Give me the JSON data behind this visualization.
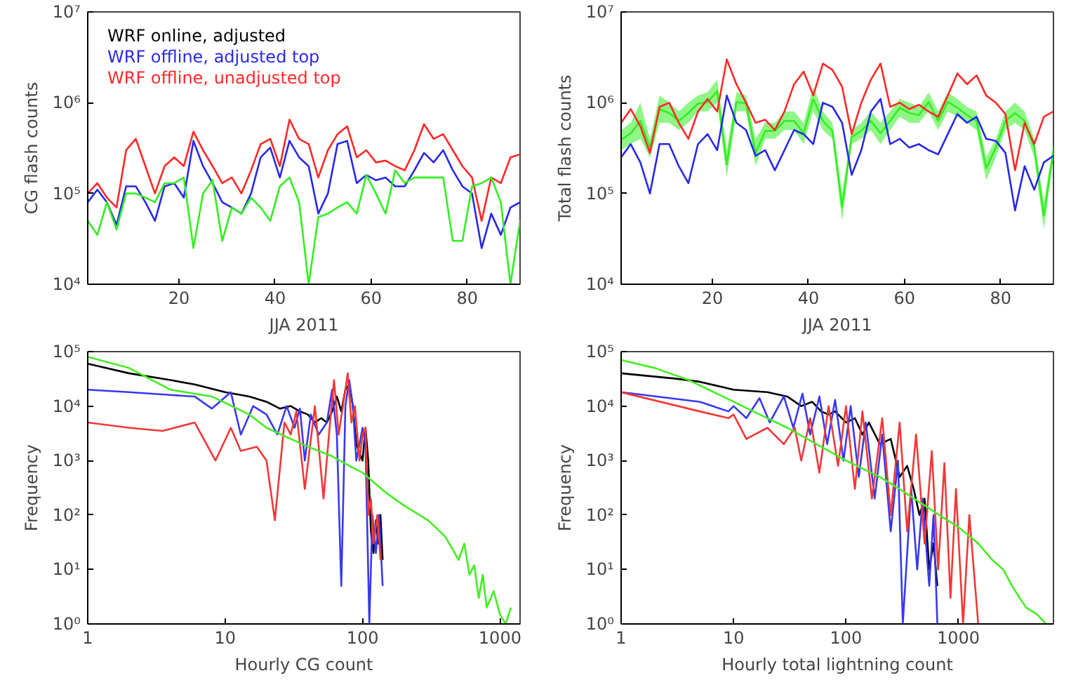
{
  "chart_data": [
    {
      "type": "line",
      "xlabel": "JJA 2011",
      "ylabel": "CG flash counts",
      "log": "y",
      "grid": false,
      "legend": "top left",
      "xlim": [
        1,
        91
      ],
      "xticks": [
        20,
        40,
        60,
        80
      ],
      "ylim": [
        10000,
        10000000
      ],
      "yticks": [
        {
          "value": 10000,
          "label": "10⁴"
        },
        {
          "value": 100000,
          "label": "10⁵"
        },
        {
          "value": 1000000,
          "label": "10⁶"
        },
        {
          "value": 10000000,
          "label": "10⁷"
        }
      ],
      "x": [
        1,
        3,
        5,
        7,
        9,
        11,
        13,
        15,
        17,
        19,
        21,
        23,
        25,
        27,
        29,
        31,
        33,
        35,
        37,
        39,
        41,
        43,
        45,
        47,
        49,
        51,
        53,
        55,
        57,
        59,
        61,
        63,
        65,
        67,
        69,
        71,
        73,
        75,
        77,
        79,
        81,
        83,
        85,
        87,
        89,
        91
      ],
      "series": [
        {
          "name": "WRF online, adjusted",
          "color": "#000000",
          "values": [
            null,
            null,
            null,
            null,
            null,
            null,
            null,
            null,
            null,
            null,
            null,
            null,
            null,
            null,
            null,
            null,
            null,
            null,
            null,
            null,
            null,
            null,
            null,
            null,
            null,
            null,
            null,
            null,
            null,
            null,
            null,
            null,
            null,
            null,
            null,
            null,
            null,
            null,
            null,
            null,
            null,
            null,
            null,
            null,
            null,
            null
          ]
        },
        {
          "name": "WRF offline, adjusted top",
          "color": "#2828e8",
          "values": [
            80000,
            110000,
            80000,
            45000,
            120000,
            120000,
            80000,
            50000,
            120000,
            130000,
            90000,
            380000,
            200000,
            130000,
            80000,
            70000,
            60000,
            100000,
            250000,
            320000,
            150000,
            380000,
            250000,
            200000,
            60000,
            100000,
            350000,
            380000,
            130000,
            160000,
            140000,
            150000,
            120000,
            120000,
            180000,
            280000,
            220000,
            300000,
            180000,
            120000,
            100000,
            25000,
            60000,
            35000,
            70000,
            80000
          ]
        },
        {
          "name": "WRF offline, unadjusted top",
          "color": "#ff2828",
          "values": [
            100000,
            130000,
            90000,
            70000,
            300000,
            400000,
            200000,
            100000,
            200000,
            250000,
            200000,
            480000,
            300000,
            200000,
            130000,
            150000,
            100000,
            180000,
            350000,
            400000,
            200000,
            650000,
            400000,
            350000,
            150000,
            300000,
            450000,
            550000,
            250000,
            300000,
            220000,
            230000,
            200000,
            180000,
            300000,
            580000,
            400000,
            450000,
            300000,
            200000,
            150000,
            50000,
            150000,
            130000,
            250000,
            270000
          ]
        },
        {
          "color": "#33ee22",
          "values": [
            50000,
            35000,
            80000,
            40000,
            100000,
            100000,
            90000,
            80000,
            130000,
            130000,
            150000,
            25000,
            100000,
            140000,
            30000,
            70000,
            60000,
            90000,
            70000,
            50000,
            120000,
            150000,
            80000,
            10000,
            55000,
            60000,
            70000,
            80000,
            60000,
            160000,
            100000,
            60000,
            180000,
            130000,
            150000,
            150000,
            150000,
            150000,
            30000,
            30000,
            120000,
            130000,
            150000,
            80000,
            10000,
            50000
          ]
        }
      ]
    },
    {
      "type": "line",
      "xlabel": "JJA 2011",
      "ylabel": "Total flash counts",
      "log": "y",
      "grid": false,
      "xlim": [
        1,
        91
      ],
      "xticks": [
        20,
        40,
        60,
        80
      ],
      "ylim": [
        10000,
        10000000
      ],
      "yticks": [
        {
          "value": 10000,
          "label": "10⁴"
        },
        {
          "value": 100000,
          "label": "10⁵"
        },
        {
          "value": 1000000,
          "label": "10⁶"
        },
        {
          "value": 10000000,
          "label": "10⁷"
        }
      ],
      "x": [
        1,
        3,
        5,
        7,
        9,
        11,
        13,
        15,
        17,
        19,
        21,
        23,
        25,
        27,
        29,
        31,
        33,
        35,
        37,
        39,
        41,
        43,
        45,
        47,
        49,
        51,
        53,
        55,
        57,
        59,
        61,
        63,
        65,
        67,
        69,
        71,
        73,
        75,
        77,
        79,
        81,
        83,
        85,
        87,
        89,
        91
      ],
      "series": [
        {
          "color": "#33ee22",
          "values": [
            390000,
            460000,
            630000,
            320000,
            850000,
            770000,
            630000,
            770000,
            980000,
            1020000,
            1340000,
            210000,
            1020000,
            980000,
            280000,
            490000,
            490000,
            630000,
            630000,
            460000,
            1100000,
            630000,
            490000,
            71000,
            420000,
            490000,
            630000,
            460000,
            630000,
            880000,
            770000,
            730000,
            1020000,
            630000,
            1020000,
            880000,
            730000,
            630000,
            190000,
            320000,
            630000,
            770000,
            630000,
            320000,
            57000,
            300000
          ],
          "lower": [
            300000,
            350000,
            400000,
            250000,
            600000,
            600000,
            500000,
            600000,
            800000,
            800000,
            1000000,
            150000,
            800000,
            800000,
            200000,
            400000,
            400000,
            500000,
            500000,
            350000,
            800000,
            500000,
            400000,
            50000,
            350000,
            400000,
            500000,
            350000,
            500000,
            700000,
            600000,
            600000,
            800000,
            500000,
            800000,
            700000,
            600000,
            500000,
            140000,
            250000,
            500000,
            600000,
            500000,
            250000,
            40000,
            250000
          ],
          "upper": [
            500000,
            600000,
            1000000,
            400000,
            1200000,
            1000000,
            800000,
            1000000,
            1200000,
            1300000,
            1800000,
            300000,
            1300000,
            1200000,
            400000,
            600000,
            600000,
            800000,
            800000,
            600000,
            1500000,
            800000,
            600000,
            100000,
            500000,
            600000,
            800000,
            600000,
            800000,
            1100000,
            1000000,
            900000,
            1300000,
            800000,
            1300000,
            1100000,
            900000,
            800000,
            250000,
            400000,
            800000,
            1000000,
            800000,
            400000,
            80000,
            350000
          ]
        },
        {
          "color": "#ff2828",
          "values": [
            600000,
            850000,
            550000,
            280000,
            900000,
            1000000,
            600000,
            400000,
            800000,
            1100000,
            800000,
            3000000,
            1600000,
            1000000,
            600000,
            650000,
            500000,
            800000,
            1600000,
            2200000,
            1200000,
            2700000,
            2300000,
            1500000,
            450000,
            1000000,
            1800000,
            2700000,
            900000,
            1000000,
            850000,
            950000,
            800000,
            700000,
            1200000,
            2100000,
            1600000,
            2000000,
            1200000,
            1000000,
            750000,
            180000,
            600000,
            350000,
            700000,
            800000
          ]
        },
        {
          "color": "#2828e8",
          "values": [
            250000,
            350000,
            220000,
            100000,
            350000,
            350000,
            200000,
            130000,
            350000,
            450000,
            300000,
            1200000,
            600000,
            500000,
            260000,
            300000,
            180000,
            300000,
            500000,
            450000,
            350000,
            1000000,
            900000,
            600000,
            160000,
            300000,
            800000,
            1100000,
            350000,
            400000,
            320000,
            350000,
            300000,
            270000,
            450000,
            750000,
            600000,
            700000,
            400000,
            380000,
            280000,
            65000,
            200000,
            110000,
            220000,
            260000
          ]
        }
      ]
    },
    {
      "type": "line",
      "xlabel": "Hourly CG count",
      "ylabel": "Frequency",
      "log": "xy",
      "grid": false,
      "xlim": [
        1,
        1400
      ],
      "xticks": [
        1,
        10,
        100,
        1000
      ],
      "ylim": [
        1,
        100000
      ],
      "yticks": [
        {
          "value": 1,
          "label": "10⁰"
        },
        {
          "value": 10,
          "label": "10¹"
        },
        {
          "value": 100,
          "label": "10²"
        },
        {
          "value": 1000,
          "label": "10³"
        },
        {
          "value": 10000,
          "label": "10⁴"
        },
        {
          "value": 100000,
          "label": "10⁵"
        }
      ],
      "series": [
        {
          "color": "#000000",
          "x": [
            1,
            2,
            4,
            6,
            10,
            15,
            20,
            25,
            30,
            35,
            40,
            45,
            50,
            55,
            60,
            65,
            70,
            75,
            80,
            85,
            90,
            100,
            105,
            110,
            115,
            120,
            125,
            130,
            135,
            140
          ],
          "values": [
            60000,
            40000,
            30000,
            25000,
            18000,
            15000,
            12000,
            9000,
            10000,
            8000,
            7000,
            5000,
            6000,
            5000,
            8000,
            15000,
            8000,
            20000,
            25000,
            10000,
            2000,
            1000,
            4000,
            1000,
            50,
            20,
            80,
            30,
            100,
            15
          ]
        },
        {
          "color": "#3838f0",
          "x": [
            1,
            2,
            4,
            6,
            8,
            11,
            13,
            16,
            20,
            24,
            28,
            32,
            35,
            38,
            42,
            48,
            55,
            60,
            65,
            70,
            75,
            80,
            85,
            90,
            95,
            100,
            105,
            112,
            118,
            125,
            132,
            140
          ],
          "values": [
            20000,
            18000,
            16000,
            15000,
            9000,
            18000,
            3000,
            10000,
            7000,
            3000,
            10000,
            4000,
            9000,
            1000,
            7000,
            3000,
            5000,
            20000,
            3000,
            5,
            10000,
            30000,
            10000,
            1000,
            2000,
            4000,
            2000,
            1,
            100,
            20,
            100,
            5
          ]
        },
        {
          "color": "#f03838",
          "x": [
            1,
            2,
            3.5,
            6,
            8.5,
            11,
            13,
            17,
            20,
            23,
            27,
            30,
            33,
            38,
            45,
            52,
            58,
            62,
            67,
            72,
            78,
            83,
            88,
            95,
            100,
            105,
            110,
            115,
            120,
            128,
            135
          ],
          "values": [
            5000,
            4000,
            3500,
            5000,
            1000,
            4000,
            1500,
            1800,
            1000,
            80,
            5000,
            3000,
            8000,
            300,
            10000,
            200,
            5000,
            30000,
            3000,
            10000,
            40000,
            5000,
            10000,
            1000,
            3000,
            4000,
            100,
            200,
            30,
            100,
            15
          ]
        },
        {
          "color": "#44ee22",
          "x": [
            1,
            2,
            4,
            8,
            15,
            20,
            30,
            40,
            60,
            80,
            100,
            150,
            200,
            300,
            400,
            500,
            550,
            600,
            650,
            700,
            750,
            800,
            900,
            1000,
            1100,
            1200
          ],
          "values": [
            80000,
            50000,
            20000,
            15000,
            7000,
            4000,
            2500,
            1800,
            1200,
            800,
            600,
            250,
            150,
            80,
            40,
            15,
            30,
            8,
            12,
            3,
            8,
            2,
            4,
            1.5,
            1,
            2
          ]
        }
      ]
    },
    {
      "type": "line",
      "xlabel": "Hourly total lightning count",
      "ylabel": "Frequency",
      "log": "xy",
      "grid": false,
      "xlim": [
        1,
        7000
      ],
      "xticks": [
        1,
        10,
        100,
        1000
      ],
      "ylim": [
        1,
        100000
      ],
      "yticks": [
        {
          "value": 1,
          "label": "10⁰"
        },
        {
          "value": 10,
          "label": "10¹"
        },
        {
          "value": 100,
          "label": "10²"
        },
        {
          "value": 1000,
          "label": "10³"
        },
        {
          "value": 10000,
          "label": "10⁴"
        },
        {
          "value": 100000,
          "label": "10⁵"
        }
      ],
      "series": [
        {
          "color": "#000000",
          "x": [
            1,
            3,
            5,
            10,
            20,
            30,
            40,
            50,
            60,
            70,
            80,
            100,
            120,
            140,
            160,
            200,
            250,
            300,
            350,
            400,
            450,
            500,
            550,
            600,
            650
          ],
          "values": [
            40000,
            32000,
            28000,
            20000,
            18000,
            15000,
            10000,
            12000,
            8000,
            7000,
            8000,
            5000,
            6000,
            3000,
            5000,
            2000,
            2500,
            500,
            800,
            300,
            100,
            200,
            10,
            30,
            5
          ]
        },
        {
          "color": "#3838f0",
          "x": [
            1,
            5,
            9,
            10,
            13,
            17,
            21,
            28,
            34,
            41,
            48,
            58,
            68,
            80,
            95,
            110,
            130,
            150,
            180,
            210,
            250,
            290,
            320,
            380,
            430,
            480,
            550,
            600,
            650
          ],
          "values": [
            18000,
            12000,
            8000,
            10000,
            6000,
            14000,
            5000,
            15000,
            4000,
            17000,
            3000,
            15000,
            2000,
            13000,
            1000,
            10000,
            500,
            5000,
            200,
            3000,
            50,
            1000,
            1,
            300,
            10,
            200,
            5,
            100,
            1
          ]
        },
        {
          "color": "#f03838",
          "x": [
            1,
            5,
            9,
            10,
            13,
            20,
            28,
            35,
            40,
            48,
            58,
            70,
            85,
            100,
            120,
            140,
            170,
            210,
            250,
            300,
            350,
            420,
            500,
            580,
            660,
            750,
            850,
            950,
            1100,
            1250,
            1500
          ],
          "values": [
            18000,
            8000,
            6000,
            7000,
            2500,
            4000,
            2000,
            4000,
            1000,
            6000,
            600,
            10000,
            800,
            10000,
            300,
            8000,
            200,
            6000,
            100,
            5000,
            50,
            3000,
            30,
            1500,
            10,
            900,
            3,
            300,
            1,
            100,
            1
          ]
        },
        {
          "color": "#44ee22",
          "x": [
            1,
            2,
            4,
            8,
            15,
            30,
            60,
            100,
            200,
            300,
            500,
            800,
            1000,
            1500,
            2000,
            2500,
            3000,
            3500,
            4000,
            5000,
            6000
          ],
          "values": [
            70000,
            50000,
            30000,
            15000,
            8000,
            4000,
            1800,
            1000,
            500,
            300,
            150,
            80,
            60,
            30,
            15,
            10,
            5,
            3,
            2,
            1.5,
            1
          ]
        }
      ]
    }
  ]
}
